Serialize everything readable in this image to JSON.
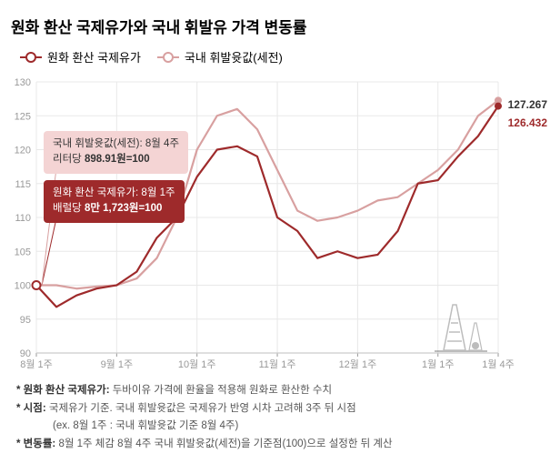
{
  "title": "원화 환산 국제유가와 국내 휘발유 가격 변동률",
  "legend": {
    "series1": {
      "label": "원화 환산 국제유가",
      "color": "#9e2a2b"
    },
    "series2": {
      "label": "국내 휘발윳값(세전)",
      "color": "#d8a0a0"
    }
  },
  "chart": {
    "type": "line",
    "x_categories": [
      "8월 1주",
      "",
      "",
      "",
      "9월 1주",
      "",
      "",
      "",
      "10월 1주",
      "",
      "",
      "",
      "11월 1주",
      "",
      "",
      "",
      "12월 1주",
      "",
      "",
      "",
      "1월 1주",
      "",
      "",
      "1월 4주"
    ],
    "x_tick_labels": [
      "8월 1주",
      "9월 1주",
      "10월 1주",
      "11월 1주",
      "12월 1주",
      "1월 1주",
      "1월 4주"
    ],
    "x_tick_positions": [
      0,
      4,
      8,
      12,
      16,
      20,
      23
    ],
    "ylim": [
      90,
      130
    ],
    "ytick_step": 5,
    "y_ticks": [
      90,
      95,
      100,
      105,
      110,
      115,
      120,
      125,
      130
    ],
    "grid_color": "#e8e8e8",
    "background_color": "#ffffff",
    "line_width": 2.2,
    "marker_radius": 3.5,
    "series1": {
      "name": "원화 환산 국제유가",
      "color": "#9e2a2b",
      "values": [
        100,
        96.8,
        98.5,
        99.5,
        100,
        102,
        107,
        110,
        116,
        120,
        120.5,
        119,
        110,
        108,
        104,
        105,
        104,
        104.5,
        108,
        115,
        115.5,
        119,
        122,
        126.432
      ],
      "end_label": "126.432"
    },
    "series2": {
      "name": "국내 휘발윳값(세전)",
      "color": "#d8a0a0",
      "values": [
        100,
        100,
        99.5,
        99.8,
        100,
        101,
        104,
        110,
        120,
        125,
        126,
        123,
        117,
        111,
        109.5,
        110,
        111,
        112.5,
        113,
        115,
        117,
        120,
        125,
        127.267
      ],
      "end_label": "127.267"
    }
  },
  "callouts": {
    "pink": {
      "line1": "국내 휘발윳값(세전): 8월 4주",
      "line2_pre": "리터당 ",
      "line2_bold": "898.91원=100"
    },
    "red": {
      "line1": "원화 환산 국제유가: 8월 1주",
      "line2_pre": "배럴당 ",
      "line2_bold": "8만 1,723원=100"
    }
  },
  "footnotes": {
    "n1_label": "* 원화 환산 국제유가:",
    "n1_text": " 두바이유 가격에 환율을 적용해 원화로 환산한 수치",
    "n2_label": "* 시점:",
    "n2_text": " 국제유가 기준. 국내 휘발윳값은 국제유가 반영 시차 고려해 3주 뒤 시점",
    "n2_indent": "(ex. 8월 1주 : 국내 휘발윳값 기준 8월 4주)",
    "n3_label": "* 변동률:",
    "n3_text": " 8월 1주 체감 8월 4주 국내 휘발윳값(세전)을 기준점(100)으로 설정한 뒤 계산"
  }
}
